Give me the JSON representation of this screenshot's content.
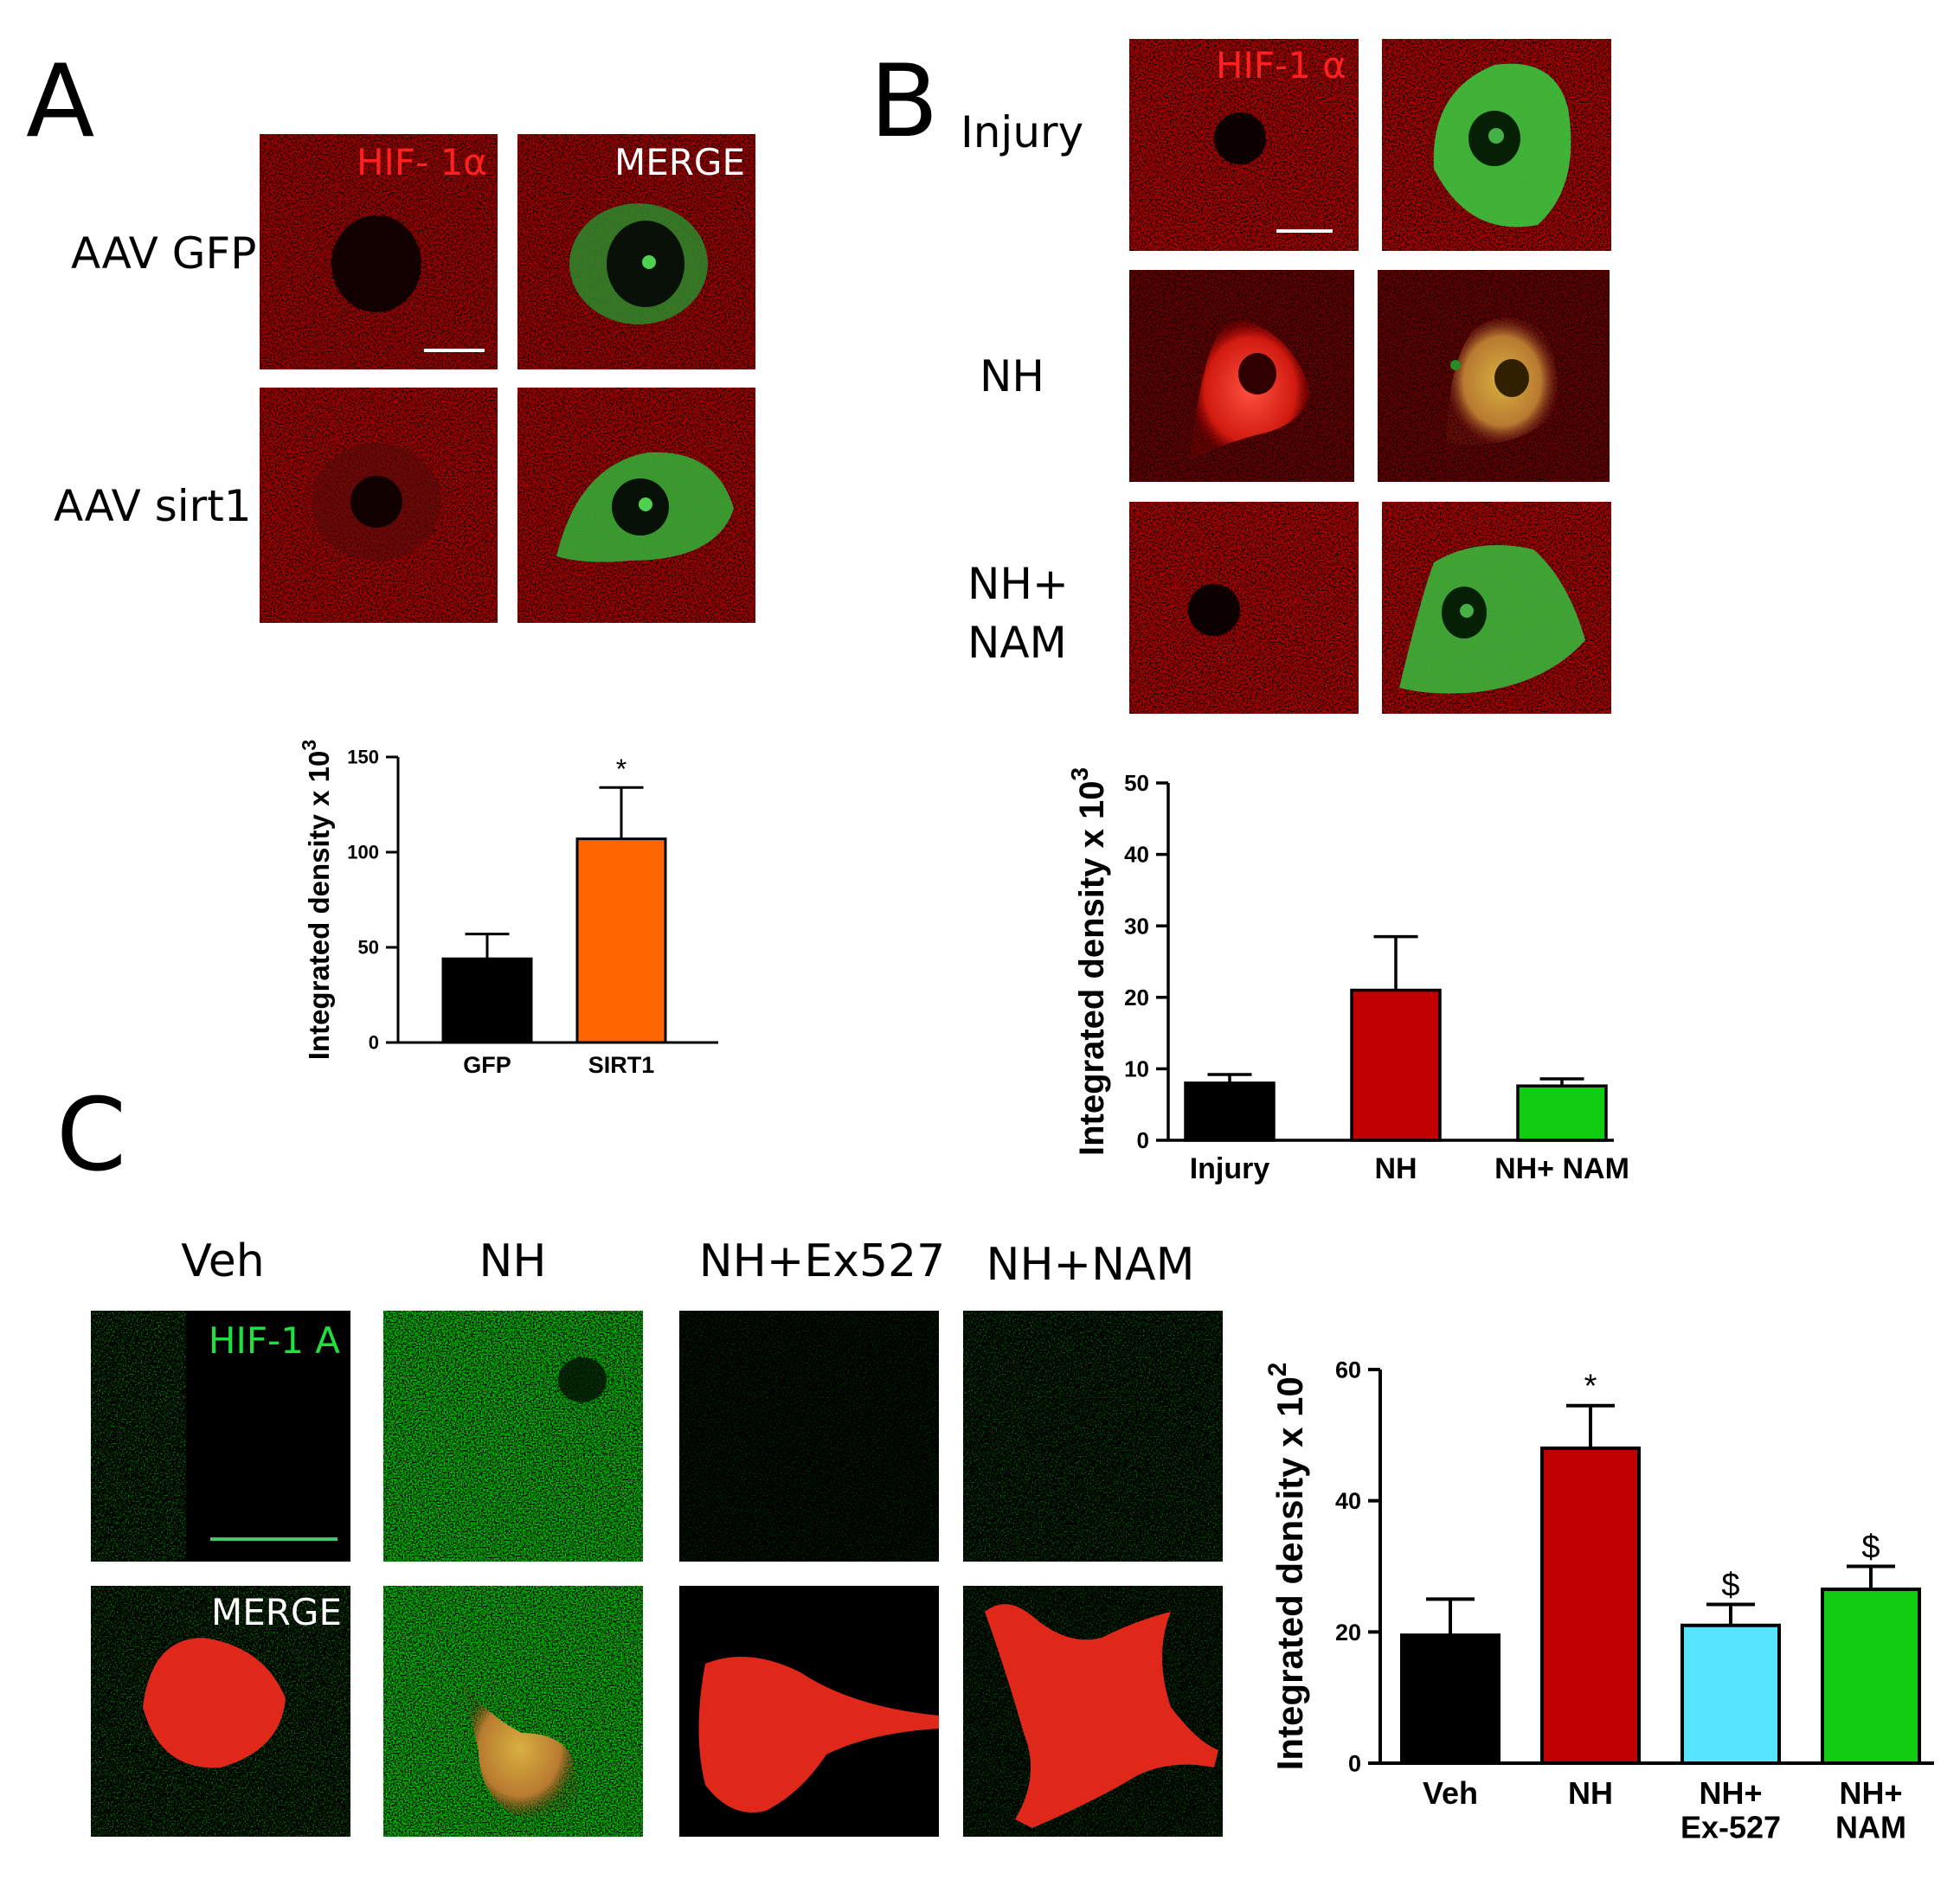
{
  "panel_a": {
    "letter": "A",
    "channel_label": "HIF- 1α",
    "merge_label": "MERGE",
    "rows": [
      "AAV GFP",
      "AAV sirt1"
    ]
  },
  "panel_b": {
    "letter": "B",
    "channel_label": "HIF-1 α",
    "rows": [
      "Injury",
      "NH",
      "NH+",
      "NAM"
    ]
  },
  "panel_c": {
    "letter": "C",
    "columns": [
      "Veh",
      "NH",
      "NH+Ex527",
      "NH+NAM"
    ],
    "channel_label": "HIF-1 A",
    "merge_label": "MERGE"
  },
  "colors": {
    "black_bar": "#000000",
    "orange_bar": "#ff6600",
    "red_bar": "#c00000",
    "green_bar": "#11cc11",
    "cyan_bar": "#55e5ff"
  },
  "chart_data": [
    {
      "id": "chart-a",
      "type": "bar",
      "categories": [
        "GFP",
        "SIRT1"
      ],
      "values": [
        44,
        107
      ],
      "errors": [
        13,
        27
      ],
      "bar_colors": [
        "#000000",
        "#ff6600"
      ],
      "annotations": [
        "",
        "*"
      ],
      "ylabel": "Integrated density x 10",
      "ylabel_sup": "3",
      "ylim": [
        0,
        150
      ],
      "yticks": [
        0,
        50,
        100,
        150
      ]
    },
    {
      "id": "chart-b",
      "type": "bar",
      "categories": [
        "Injury",
        "NH",
        "NH+ NAM"
      ],
      "values": [
        8,
        21,
        7.6
      ],
      "errors": [
        1.2,
        7.5,
        1
      ],
      "bar_colors": [
        "#000000",
        "#c00000",
        "#11cc11"
      ],
      "annotations": [
        "",
        "",
        ""
      ],
      "ylabel": "Integrated density x 10",
      "ylabel_sup": "3",
      "ylim": [
        0,
        50
      ],
      "yticks": [
        0,
        10,
        20,
        30,
        40,
        50
      ]
    },
    {
      "id": "chart-c",
      "type": "bar",
      "categories": [
        "Veh",
        "NH",
        "NH+|Ex-527",
        "NH+|NAM"
      ],
      "values": [
        19.5,
        48,
        21,
        26.5
      ],
      "errors": [
        5.5,
        6.5,
        3.2,
        3.5
      ],
      "bar_colors": [
        "#000000",
        "#c00000",
        "#55e5ff",
        "#11cc11"
      ],
      "annotations": [
        "",
        "*",
        "$",
        "$"
      ],
      "ylabel": "Integrated density x 10",
      "ylabel_sup": "2",
      "ylim": [
        0,
        60
      ],
      "yticks": [
        0,
        20,
        40,
        60
      ]
    }
  ]
}
